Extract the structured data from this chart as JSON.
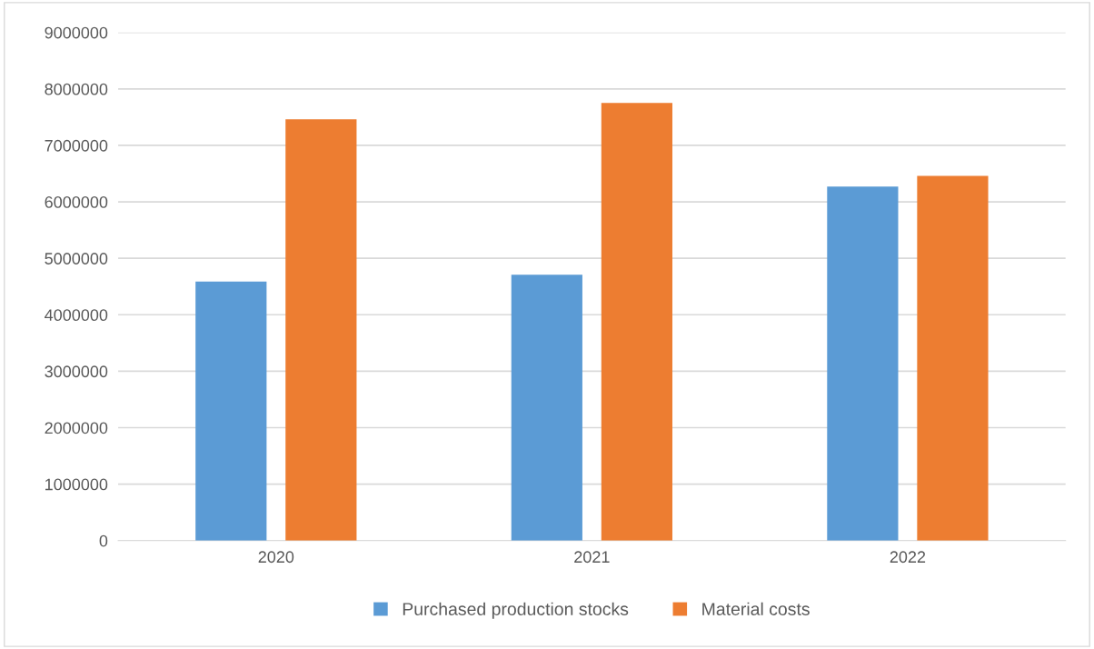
{
  "chart_data": {
    "type": "bar",
    "categories": [
      "2020",
      "2021",
      "2022"
    ],
    "series": [
      {
        "name": "Purchased production stocks",
        "color": "#5b9bd5",
        "values": [
          4590000,
          4710000,
          6270000
        ]
      },
      {
        "name": "Material costs",
        "color": "#ed7d31",
        "values": [
          7460000,
          7750000,
          6460000
        ]
      }
    ],
    "ylim": [
      0,
      9000000
    ],
    "yticks": [
      0,
      1000000,
      2000000,
      3000000,
      4000000,
      5000000,
      6000000,
      7000000,
      8000000,
      9000000
    ],
    "grid": "y",
    "legend": "bottom"
  }
}
